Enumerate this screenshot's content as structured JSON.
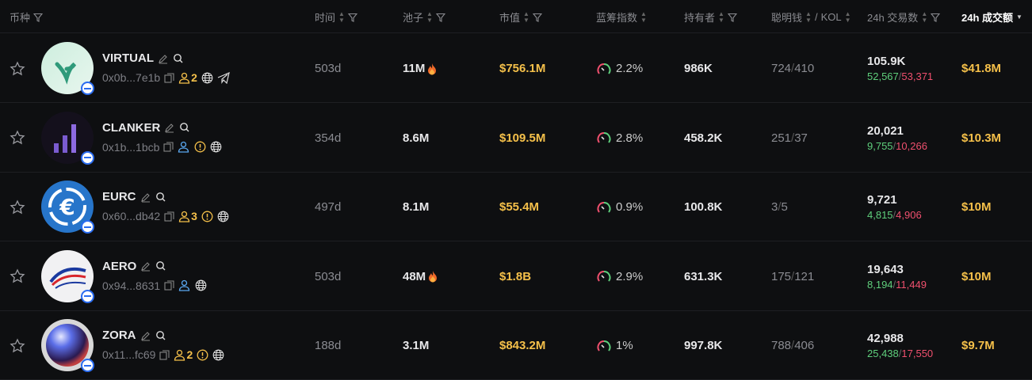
{
  "header": {
    "token": "币种",
    "time": "时间",
    "pool": "池子",
    "mcap": "市值",
    "bluechip": "蓝筹指数",
    "holders": "持有者",
    "smart": "聪明钱",
    "kol": "KOL",
    "sep": "/",
    "txns": "24h 交易数",
    "volume": "24h 成交额"
  },
  "colors": {
    "accent_yellow": "#f5c04a",
    "buy_green": "#5fcf7c",
    "sell_red": "#f0506e",
    "badge_blue": "#2a6cf0"
  },
  "rows": [
    {
      "name": "VIRTUAL",
      "address": "0x0b...7e1b",
      "holders_icon_count": "2",
      "holder_color": "yellow",
      "warning": false,
      "telegram": true,
      "age": "503d",
      "pool": "11M",
      "hot": true,
      "mcap": "$756.1M",
      "bluechip": "2.2%",
      "holders": "986K",
      "smart": "724",
      "kol": "410",
      "txns": "105.9K",
      "buys": "52,567",
      "sells": "53,371",
      "volume": "$41.8M"
    },
    {
      "name": "CLANKER",
      "address": "0x1b...1bcb",
      "holders_icon_count": "",
      "holder_color": "blue",
      "warning": true,
      "telegram": false,
      "age": "354d",
      "pool": "8.6M",
      "hot": false,
      "mcap": "$109.5M",
      "bluechip": "2.8%",
      "holders": "458.2K",
      "smart": "251",
      "kol": "37",
      "txns": "20,021",
      "buys": "9,755",
      "sells": "10,266",
      "volume": "$10.3M"
    },
    {
      "name": "EURC",
      "address": "0x60...db42",
      "holders_icon_count": "3",
      "holder_color": "yellow",
      "warning": true,
      "telegram": false,
      "age": "497d",
      "pool": "8.1M",
      "hot": false,
      "mcap": "$55.4M",
      "bluechip": "0.9%",
      "holders": "100.8K",
      "smart": "3",
      "kol": "5",
      "txns": "9,721",
      "buys": "4,815",
      "sells": "4,906",
      "volume": "$10M"
    },
    {
      "name": "AERO",
      "address": "0x94...8631",
      "holders_icon_count": "",
      "holder_color": "blue",
      "warning": false,
      "telegram": false,
      "age": "503d",
      "pool": "48M",
      "hot": true,
      "mcap": "$1.8B",
      "bluechip": "2.9%",
      "holders": "631.3K",
      "smart": "175",
      "kol": "121",
      "txns": "19,643",
      "buys": "8,194",
      "sells": "11,449",
      "volume": "$10M"
    },
    {
      "name": "ZORA",
      "address": "0x11...fc69",
      "holders_icon_count": "2",
      "holder_color": "yellow",
      "warning": true,
      "telegram": false,
      "age": "188d",
      "pool": "3.1M",
      "hot": false,
      "mcap": "$843.2M",
      "bluechip": "1%",
      "holders": "997.8K",
      "smart": "788",
      "kol": "406",
      "txns": "42,988",
      "buys": "25,438",
      "sells": "17,550",
      "volume": "$9.7M"
    }
  ]
}
